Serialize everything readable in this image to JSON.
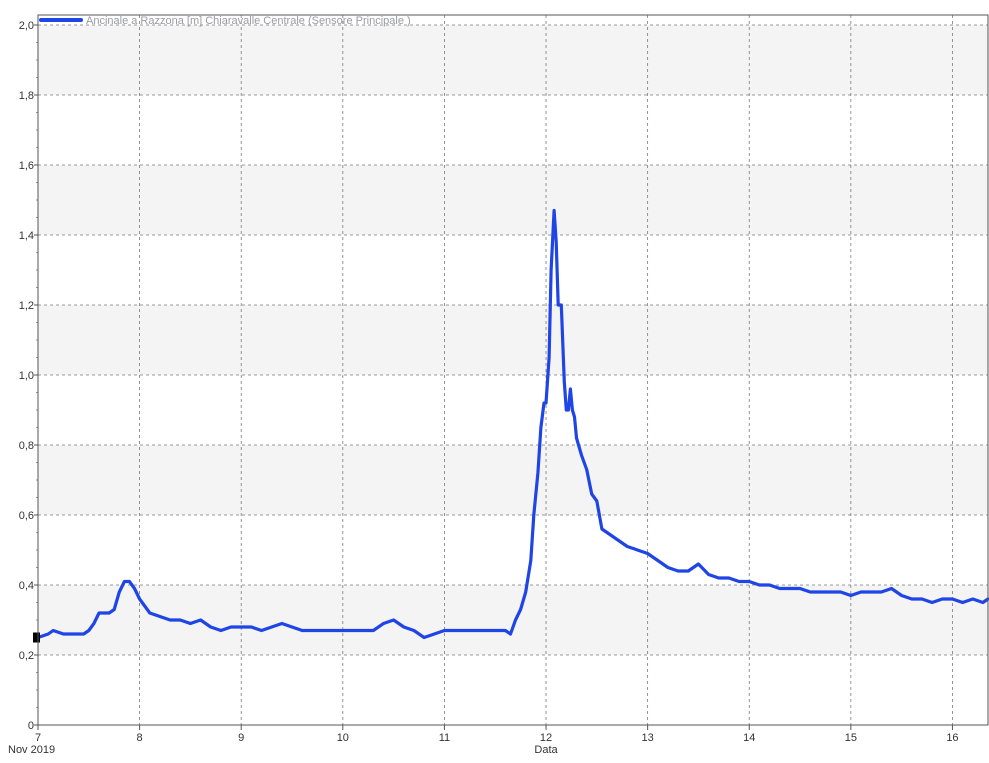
{
  "colors": {
    "series": "#1f45e6",
    "band": "#f4f4f4",
    "grid": "#7a7a7a",
    "axis": "#555555",
    "marker": "#000000"
  },
  "chart_data": {
    "type": "line",
    "title": "",
    "xlabel": "Data",
    "ylabel": "",
    "xlim": [
      7,
      16.35
    ],
    "ylim": [
      0,
      2.0
    ],
    "grid": true,
    "legend_position": "top-left",
    "x_tick_labels": [
      "7",
      "8",
      "9",
      "10",
      "11",
      "12",
      "13",
      "14",
      "15",
      "16"
    ],
    "x_tick_values": [
      7,
      8,
      9,
      10,
      11,
      12,
      13,
      14,
      15,
      16
    ],
    "x_sub_label": "Nov 2019",
    "y_tick_labels": [
      "0",
      "0,2",
      "0,4",
      "0,6",
      "0,8",
      "1,0",
      "1,2",
      "1,4",
      "1,6",
      "1,8",
      "2,0"
    ],
    "y_tick_values": [
      0,
      0.2,
      0.4,
      0.6,
      0.8,
      1.0,
      1.2,
      1.4,
      1.6,
      1.8,
      2.0
    ],
    "series": [
      {
        "name": "Ancinale a Razzona [m] Chiaravalle Centrale  (Sensore Principale )",
        "x": [
          7.0,
          7.1,
          7.15,
          7.25,
          7.3,
          7.45,
          7.5,
          7.55,
          7.6,
          7.7,
          7.75,
          7.8,
          7.85,
          7.9,
          7.95,
          8.0,
          8.05,
          8.1,
          8.2,
          8.3,
          8.4,
          8.5,
          8.6,
          8.7,
          8.8,
          8.9,
          9.0,
          9.1,
          9.2,
          9.3,
          9.4,
          9.5,
          9.6,
          9.7,
          9.8,
          9.9,
          10.0,
          10.1,
          10.2,
          10.3,
          10.4,
          10.5,
          10.6,
          10.7,
          10.8,
          10.9,
          11.0,
          11.1,
          11.2,
          11.3,
          11.4,
          11.5,
          11.6,
          11.65,
          11.7,
          11.75,
          11.8,
          11.85,
          11.88,
          11.92,
          11.95,
          11.98,
          12.0,
          12.03,
          12.05,
          12.08,
          12.1,
          12.12,
          12.15,
          12.18,
          12.2,
          12.22,
          12.24,
          12.26,
          12.28,
          12.3,
          12.35,
          12.4,
          12.45,
          12.5,
          12.55,
          12.6,
          12.7,
          12.8,
          12.9,
          13.0,
          13.1,
          13.2,
          13.3,
          13.4,
          13.5,
          13.6,
          13.7,
          13.8,
          13.9,
          14.0,
          14.1,
          14.2,
          14.3,
          14.4,
          14.5,
          14.6,
          14.7,
          14.8,
          14.9,
          15.0,
          15.1,
          15.2,
          15.3,
          15.4,
          15.5,
          15.6,
          15.7,
          15.8,
          15.9,
          16.0,
          16.1,
          16.2,
          16.3,
          16.35
        ],
        "y": [
          0.25,
          0.26,
          0.27,
          0.26,
          0.26,
          0.26,
          0.27,
          0.29,
          0.32,
          0.32,
          0.33,
          0.38,
          0.41,
          0.41,
          0.39,
          0.36,
          0.34,
          0.32,
          0.31,
          0.3,
          0.3,
          0.29,
          0.3,
          0.28,
          0.27,
          0.28,
          0.28,
          0.28,
          0.27,
          0.28,
          0.29,
          0.28,
          0.27,
          0.27,
          0.27,
          0.27,
          0.27,
          0.27,
          0.27,
          0.27,
          0.29,
          0.3,
          0.28,
          0.27,
          0.25,
          0.26,
          0.27,
          0.27,
          0.27,
          0.27,
          0.27,
          0.27,
          0.27,
          0.26,
          0.3,
          0.33,
          0.38,
          0.47,
          0.6,
          0.72,
          0.85,
          0.92,
          0.92,
          1.05,
          1.3,
          1.47,
          1.38,
          1.2,
          1.2,
          0.98,
          0.9,
          0.9,
          0.96,
          0.9,
          0.88,
          0.82,
          0.77,
          0.73,
          0.66,
          0.64,
          0.56,
          0.55,
          0.53,
          0.51,
          0.5,
          0.49,
          0.47,
          0.45,
          0.44,
          0.44,
          0.46,
          0.43,
          0.42,
          0.42,
          0.41,
          0.41,
          0.4,
          0.4,
          0.39,
          0.39,
          0.39,
          0.38,
          0.38,
          0.38,
          0.38,
          0.37,
          0.38,
          0.38,
          0.38,
          0.39,
          0.37,
          0.36,
          0.36,
          0.35,
          0.36,
          0.36,
          0.35,
          0.36,
          0.35,
          0.36
        ]
      }
    ]
  }
}
